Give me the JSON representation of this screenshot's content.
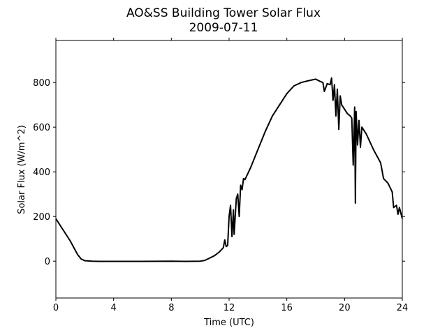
{
  "chart_data": {
    "type": "line",
    "title": "AO&SS Building Tower Solar Flux",
    "subtitle": "2009-07-11",
    "xlabel": "Time (UTC)",
    "ylabel": "Solar Flux (W/m^2)",
    "color": "#000000",
    "x": [
      0,
      0.25,
      0.5,
      0.75,
      1,
      1.25,
      1.5,
      1.75,
      2,
      2.5,
      3,
      4,
      6,
      8,
      9,
      10,
      10.3,
      10.6,
      11,
      11.3,
      11.6,
      11.7,
      11.8,
      11.9,
      12,
      12.1,
      12.2,
      12.3,
      12.35,
      12.5,
      12.6,
      12.7,
      12.8,
      12.9,
      13,
      13.1,
      13.5,
      14,
      14.5,
      15,
      15.5,
      16,
      16.5,
      17,
      17.5,
      18,
      18.3,
      18.5,
      18.6,
      18.8,
      19,
      19.1,
      19.2,
      19.3,
      19.4,
      19.5,
      19.6,
      19.7,
      19.8,
      20,
      20.2,
      20.4,
      20.5,
      20.6,
      20.7,
      20.75,
      20.8,
      20.9,
      21,
      21.1,
      21.2,
      21.5,
      22,
      22.5,
      22.7,
      23,
      23.3,
      23.4,
      23.6,
      23.7,
      23.8,
      24
    ],
    "values": [
      190,
      165,
      140,
      115,
      90,
      60,
      30,
      10,
      2,
      0,
      -1,
      -1,
      -1,
      0,
      -1,
      0,
      3,
      12,
      25,
      40,
      60,
      95,
      65,
      70,
      200,
      250,
      110,
      230,
      120,
      280,
      300,
      200,
      340,
      320,
      370,
      365,
      420,
      500,
      580,
      650,
      700,
      750,
      785,
      800,
      808,
      815,
      805,
      800,
      760,
      795,
      790,
      820,
      720,
      790,
      650,
      770,
      590,
      740,
      700,
      680,
      660,
      650,
      640,
      430,
      690,
      260,
      670,
      520,
      630,
      510,
      600,
      570,
      500,
      440,
      370,
      350,
      310,
      240,
      250,
      210,
      240,
      190
    ],
    "xlim": [
      0,
      24
    ],
    "xticks": [
      0,
      4,
      8,
      12,
      16,
      20,
      24
    ],
    "ylim": [
      -165,
      988
    ],
    "yticks": [
      0,
      200,
      400,
      600,
      800
    ]
  }
}
